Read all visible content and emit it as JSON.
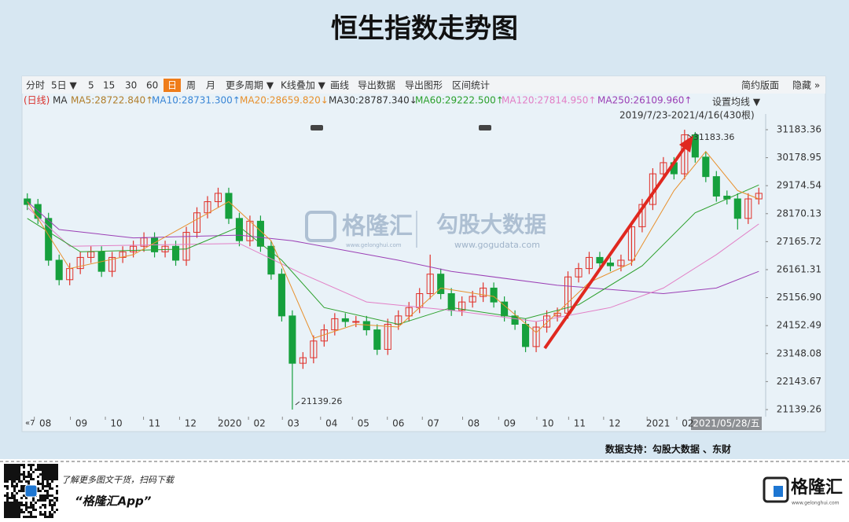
{
  "header": {
    "title": "恒生指数走势图"
  },
  "toolbar": {
    "left": [
      "分时",
      "5日 ▼",
      "5",
      "15",
      "30",
      "60",
      "日",
      "周",
      "月",
      "更多周期 ▼",
      "K线叠加 ▼",
      "画线",
      "导出数据",
      "导出图形",
      "区间统计"
    ],
    "right": [
      "简约版面",
      "隐藏 »"
    ]
  },
  "chart_data": {
    "type": "candlestick",
    "legend": [
      {
        "text": "(日线)",
        "color": "#d9302b"
      },
      {
        "text": "MA",
        "color": "#333333"
      },
      {
        "text": "MA5:28722.840↑",
        "color": "#b07d2a"
      },
      {
        "text": "MA10:28731.300↑",
        "color": "#3a86d6"
      },
      {
        "text": "MA20:28659.820↓",
        "color": "#e8902c"
      },
      {
        "text": "MA30:28787.340↓",
        "color": "#333333"
      },
      {
        "text": "MA60:29222.500↑",
        "color": "#2ca02c"
      },
      {
        "text": "MA120:27814.950↑",
        "color": "#e27fc6"
      },
      {
        "text": "MA250:26109.960↑",
        "color": "#9b3fb5"
      }
    ],
    "ma_settings": "设置均线 ▼",
    "range_label": "2019/7/23-2021/4/16(430根)",
    "up_color": "#e0312a",
    "down_color": "#16a03d",
    "open": [
      28700,
      28500,
      28000,
      26500,
      25800,
      26200,
      26600,
      26800,
      26100,
      26600,
      26800,
      27000,
      27300,
      26800,
      27000,
      26500,
      27500,
      28200,
      28600,
      28900,
      28000,
      27200,
      27900,
      27000,
      26000,
      24500,
      22800,
      23000,
      23600,
      24000,
      24400,
      24300,
      24300,
      24000,
      23300,
      24200,
      24500,
      24800,
      25300,
      26000,
      25300,
      24700,
      25000,
      25200,
      25500,
      25000,
      24500,
      24200,
      23400,
      24100,
      24500,
      24600,
      25900,
      26200,
      26600,
      26400,
      26300,
      26500,
      27700,
      28500,
      29600,
      30000,
      29600,
      31000,
      30200,
      29500,
      28800,
      28700,
      28000,
      28700
    ],
    "close": [
      28500,
      28000,
      26500,
      25800,
      26200,
      26600,
      26800,
      26100,
      26600,
      26800,
      27000,
      27300,
      26800,
      27000,
      26500,
      27500,
      28200,
      28600,
      28900,
      28000,
      27200,
      27900,
      27000,
      26000,
      24500,
      22800,
      23000,
      23600,
      24000,
      24400,
      24300,
      24300,
      24000,
      23300,
      24200,
      24500,
      24800,
      25300,
      26000,
      25300,
      24700,
      25000,
      25200,
      25500,
      25000,
      24500,
      24200,
      23400,
      24100,
      24500,
      24600,
      25900,
      26200,
      26600,
      26400,
      26300,
      26500,
      27700,
      28500,
      29600,
      30000,
      29600,
      31000,
      30200,
      29500,
      28800,
      28700,
      28000,
      28700,
      28900
    ],
    "high": [
      28900,
      28700,
      28200,
      26700,
      26400,
      26800,
      27000,
      27000,
      26800,
      27000,
      27200,
      27500,
      27500,
      27200,
      27200,
      27700,
      28400,
      28800,
      29100,
      29100,
      28200,
      28100,
      28100,
      27200,
      26200,
      24700,
      23200,
      23800,
      24200,
      24600,
      24600,
      24500,
      24500,
      24200,
      24400,
      24700,
      25000,
      25500,
      26700,
      26200,
      25500,
      25200,
      25400,
      25700,
      25700,
      25200,
      24700,
      24400,
      24300,
      24700,
      24800,
      26100,
      26400,
      26800,
      26800,
      26600,
      26700,
      27900,
      28700,
      29800,
      30200,
      30200,
      31183.36,
      31100,
      30400,
      29700,
      29000,
      28900,
      28900,
      29100
    ],
    "low": [
      28300,
      27800,
      26300,
      25600,
      25600,
      26000,
      26400,
      25900,
      25900,
      26400,
      26600,
      26800,
      26600,
      26600,
      26300,
      26300,
      27300,
      28000,
      28400,
      27800,
      27000,
      27000,
      26800,
      25800,
      24300,
      21139.26,
      22600,
      22800,
      23400,
      23800,
      24100,
      24100,
      23800,
      23100,
      23100,
      24000,
      24300,
      24600,
      25100,
      25100,
      24500,
      24500,
      24800,
      25000,
      24800,
      24300,
      24000,
      23200,
      23200,
      23900,
      24300,
      24400,
      25700,
      26000,
      26200,
      26100,
      26100,
      26300,
      27500,
      28300,
      29400,
      29400,
      29400,
      30000,
      29300,
      28600,
      28500,
      27600,
      27800,
      28500
    ],
    "ma_lines": [
      {
        "color": "#9b3fb5",
        "x": [
          0,
          3,
          10,
          20,
          25,
          35,
          40,
          50,
          60,
          65,
          69
        ],
        "values": [
          28600,
          27600,
          27300,
          27400,
          27200,
          26500,
          26100,
          25600,
          25300,
          25500,
          26100
        ]
      },
      {
        "color": "#e27fc6",
        "x": [
          0,
          4,
          20,
          26,
          32,
          40,
          48,
          55,
          60,
          65,
          69
        ],
        "values": [
          28400,
          27000,
          27100,
          26000,
          25000,
          24700,
          24300,
          24800,
          25500,
          26700,
          27800
        ]
      },
      {
        "color": "#2ca02c",
        "x": [
          0,
          5,
          15,
          20,
          24,
          28,
          35,
          40,
          47,
          52,
          58,
          63,
          69
        ],
        "values": [
          28000,
          26800,
          26900,
          27700,
          26500,
          24800,
          24200,
          24800,
          24400,
          24900,
          26300,
          28200,
          29200
        ]
      },
      {
        "color": "#e8902c",
        "x": [
          0,
          4,
          10,
          19,
          23,
          27,
          31,
          35,
          39,
          44,
          48,
          53,
          57,
          61,
          64,
          67,
          69
        ],
        "values": [
          28600,
          26200,
          26700,
          28600,
          27200,
          23700,
          24200,
          24100,
          25500,
          25200,
          23900,
          25700,
          26400,
          29000,
          30400,
          29000,
          28700
        ]
      }
    ],
    "annotations": [
      21139.26,
      31183.36
    ],
    "ylim": [
      20885,
      31747
    ],
    "yticks": [
      31183.36,
      30178.95,
      29174.54,
      28170.13,
      27165.72,
      26161.31,
      {
        "value": 25156.9,
        "label": "25156.90"
      },
      24152.49,
      23148.08,
      22143.67,
      21139.26
    ],
    "xlim": [
      -0.5,
      69.5
    ],
    "xticks": [
      {
        "value": 1.7,
        "label": "08"
      },
      {
        "value": 5.1,
        "label": "09"
      },
      {
        "value": 8.4,
        "label": "10"
      },
      {
        "value": 12,
        "label": "11"
      },
      {
        "value": 15.4,
        "label": "12"
      },
      {
        "value": 19.1,
        "label": "2020"
      },
      {
        "value": 21.9,
        "label": "02"
      },
      {
        "value": 25.1,
        "label": "03"
      },
      {
        "value": 28.7,
        "label": "04"
      },
      {
        "value": 31.7,
        "label": "05"
      },
      {
        "value": 35,
        "label": "06"
      },
      {
        "value": 38.3,
        "label": "07"
      },
      {
        "value": 42.1,
        "label": "08"
      },
      {
        "value": 45.5,
        "label": "09"
      },
      {
        "value": 49.1,
        "label": "10"
      },
      {
        "value": 52.1,
        "label": "11"
      },
      {
        "value": 55.4,
        "label": "12"
      },
      {
        "value": 59.5,
        "label": "2021"
      },
      {
        "value": 62.3,
        "label": "02"
      }
    ],
    "nav_label": "«7",
    "cursor_date": "2021/05/28/五"
  },
  "watermark": {
    "brand": "格隆汇",
    "brand_url": "www.gelonghui.com",
    "partner": "勾股大数据",
    "partner_url": "www.gogudata.com"
  },
  "source": "数据支持：勾股大数据 、东财",
  "footer": {
    "promo": "了解更多图文干货，扫码下载",
    "app": "“格隆汇App”",
    "logo": "格隆汇",
    "logo_url": "www.gelonghui.com"
  }
}
